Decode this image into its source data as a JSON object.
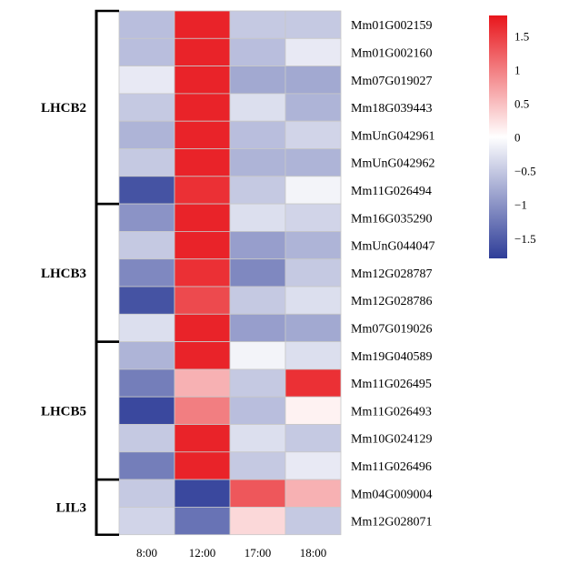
{
  "chart_data": {
    "type": "heatmap",
    "columns": [
      "8:00",
      "12:00",
      "17:00",
      "18:00"
    ],
    "rows": [
      {
        "gene": "Mm01G002159",
        "values": [
          -0.6,
          1.7,
          -0.5,
          -0.5
        ]
      },
      {
        "gene": "Mm01G002160",
        "values": [
          -0.6,
          1.7,
          -0.6,
          -0.2
        ]
      },
      {
        "gene": "Mm07G019027",
        "values": [
          -0.2,
          1.7,
          -0.8,
          -0.8
        ]
      },
      {
        "gene": "Mm18G039443",
        "values": [
          -0.5,
          1.7,
          -0.3,
          -0.7
        ]
      },
      {
        "gene": "MmUnG042961",
        "values": [
          -0.7,
          1.7,
          -0.6,
          -0.4
        ]
      },
      {
        "gene": "MmUnG042962",
        "values": [
          -0.5,
          1.7,
          -0.7,
          -0.7
        ]
      },
      {
        "gene": "Mm11G026494",
        "values": [
          -1.6,
          1.6,
          -0.5,
          -0.1
        ]
      },
      {
        "gene": "Mm16G035290",
        "values": [
          -1.0,
          1.7,
          -0.3,
          -0.4
        ]
      },
      {
        "gene": "MmUnG044047",
        "values": [
          -0.5,
          1.7,
          -0.9,
          -0.7
        ]
      },
      {
        "gene": "Mm12G028787",
        "values": [
          -1.1,
          1.6,
          -1.1,
          -0.5
        ]
      },
      {
        "gene": "Mm12G028786",
        "values": [
          -1.6,
          1.4,
          -0.5,
          -0.3
        ]
      },
      {
        "gene": "Mm07G019026",
        "values": [
          -0.3,
          1.7,
          -0.9,
          -0.8
        ]
      },
      {
        "gene": "Mm19G040589",
        "values": [
          -0.7,
          1.7,
          -0.1,
          -0.3
        ]
      },
      {
        "gene": "Mm11G026495",
        "values": [
          -1.2,
          0.6,
          -0.5,
          1.6
        ]
      },
      {
        "gene": "Mm11G026493",
        "values": [
          -1.7,
          1.0,
          -0.6,
          0.1
        ]
      },
      {
        "gene": "Mm10G024129",
        "values": [
          -0.5,
          1.7,
          -0.3,
          -0.5
        ]
      },
      {
        "gene": "Mm11G026496",
        "values": [
          -1.2,
          1.7,
          -0.5,
          -0.2
        ]
      },
      {
        "gene": "Mm04G009004",
        "values": [
          -0.5,
          -1.7,
          1.3,
          0.6
        ]
      },
      {
        "gene": "Mm12G028071",
        "values": [
          -0.4,
          -1.3,
          0.3,
          -0.5
        ]
      }
    ],
    "groups": [
      {
        "label": "LHCB2",
        "start": 0,
        "end": 6
      },
      {
        "label": "LHCB3",
        "start": 7,
        "end": 11
      },
      {
        "label": "LHCB5",
        "start": 12,
        "end": 16
      },
      {
        "label": "LIL3",
        "start": 17,
        "end": 18
      }
    ],
    "color_scale": {
      "min": -1.8,
      "max": 1.8,
      "low_color": "#2e3d98",
      "mid_color": "#ffffff",
      "high_color": "#e8161c",
      "ticks": [
        {
          "value": 1.5,
          "label": "1.5"
        },
        {
          "value": 1,
          "label": "1"
        },
        {
          "value": 0.5,
          "label": "0.5"
        },
        {
          "value": 0,
          "label": "0"
        },
        {
          "value": -0.5,
          "label": "−0.5"
        },
        {
          "value": -1,
          "label": "−1"
        },
        {
          "value": -1.5,
          "label": "−1.5"
        }
      ]
    }
  }
}
